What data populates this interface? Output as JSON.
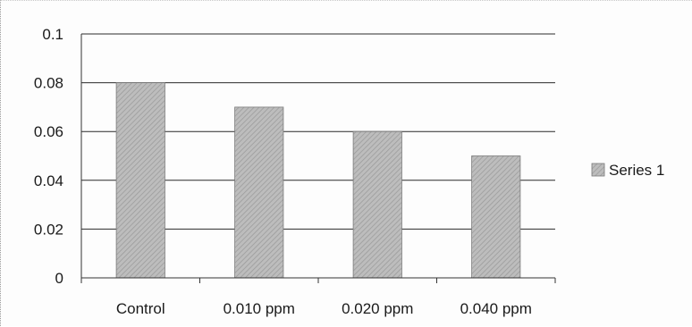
{
  "chart_data": {
    "type": "bar",
    "categories": [
      "Control",
      "0.010 ppm",
      "0.020 ppm",
      "0.040 ppm"
    ],
    "series": [
      {
        "name": "Series 1",
        "values": [
          0.08,
          0.07,
          0.06,
          0.05
        ]
      }
    ],
    "ylim": [
      0,
      0.1
    ],
    "yticks": [
      "0",
      "0.02",
      "0.04",
      "0.06",
      "0.08",
      "0.1"
    ],
    "grid": true,
    "legend": "right",
    "colors": {
      "bar": "#b4b4b4",
      "bar_border": "#7a7a7a",
      "grid": "#2a2a2a"
    }
  }
}
